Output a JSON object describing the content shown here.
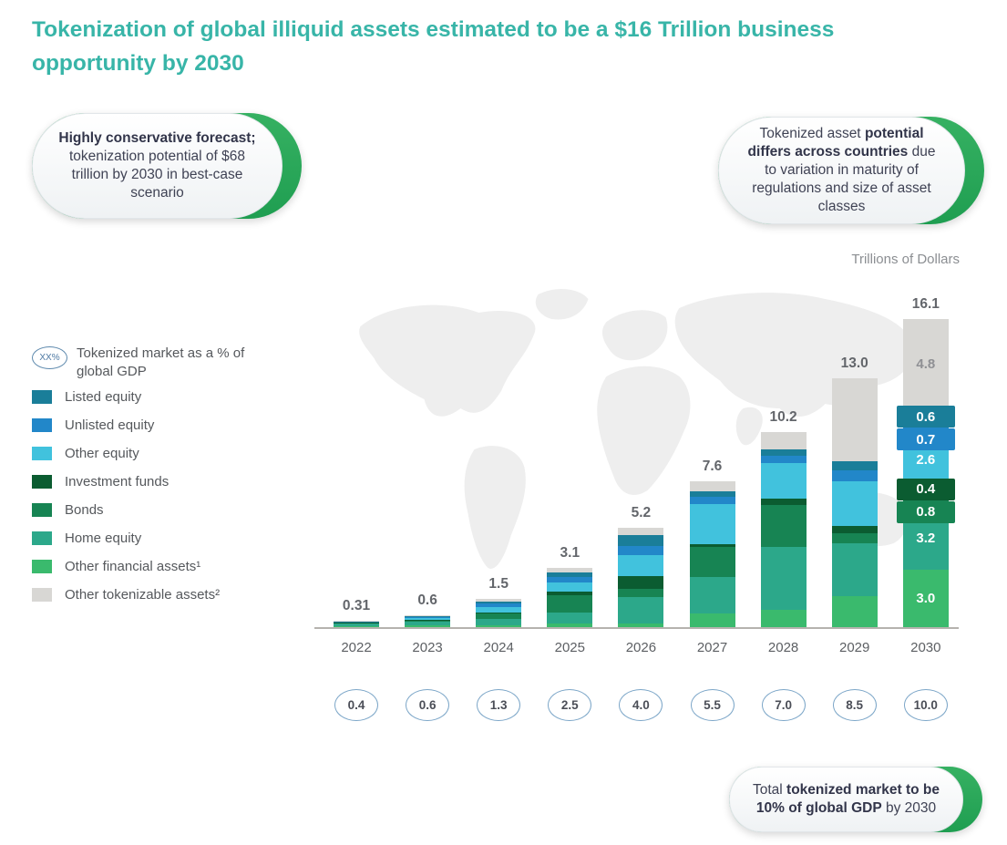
{
  "title_lines": [
    "Tokenization of global illiquid assets estimated to be a $16 Trillion business",
    "opportunity by 2030"
  ],
  "callouts": {
    "top_left": {
      "bold": "Highly conservative forecast;",
      "rest": " tokenization potential of $68 trillion by 2030 in best-case scenario"
    },
    "top_right": {
      "prefix": "Tokenized asset ",
      "bold": "potential differs across countries",
      "suffix": " due to variation in maturity of regulations and size of asset classes"
    },
    "bottom": {
      "prefix": "Total ",
      "bold": "tokenized market to be 10% of global GDP",
      "suffix": " by 2030"
    }
  },
  "legend": {
    "gdp_badge": {
      "badge_text": "XX%",
      "label": "Tokenized market as a % of global GDP"
    },
    "items": [
      {
        "label": "Listed equity",
        "color": "#1a7e99"
      },
      {
        "label": "Unlisted equity",
        "color": "#2287c9"
      },
      {
        "label": "Other equity",
        "color": "#41c2dd"
      },
      {
        "label": "Investment funds",
        "color": "#0b5c31"
      },
      {
        "label": "Bonds",
        "color": "#178453"
      },
      {
        "label": "Home equity",
        "color": "#2ca88a"
      },
      {
        "label": "Other financial assets¹",
        "color": "#3aba6d"
      },
      {
        "label": "Other tokenizable assets²",
        "color": "#d8d7d4"
      }
    ]
  },
  "chart_data": {
    "type": "bar",
    "stacked": true,
    "title": "Tokenization of global illiquid assets estimated to be a $16 Trillion business opportunity by 2030",
    "unit_label": "Trillions of Dollars",
    "categories": [
      "2022",
      "2023",
      "2024",
      "2025",
      "2026",
      "2027",
      "2028",
      "2029",
      "2030"
    ],
    "totals": [
      0.31,
      0.6,
      1.5,
      3.1,
      5.2,
      7.6,
      10.2,
      13.0,
      16.1
    ],
    "total_labels": [
      "0.31",
      "0.6",
      "1.5",
      "3.1",
      "5.2",
      "7.6",
      "10.2",
      "13.0",
      "16.1"
    ],
    "gdp_percent_of_global": [
      "0.4",
      "0.6",
      "1.3",
      "2.5",
      "4.0",
      "5.5",
      "7.0",
      "8.5",
      "10.0"
    ],
    "stack_order": "bottom-to-top",
    "series": [
      {
        "name": "Other financial assets¹",
        "color": "#3aba6d",
        "values": [
          0.05,
          0.08,
          0.1,
          0.2,
          0.2,
          0.7,
          0.9,
          1.6,
          3.0
        ]
      },
      {
        "name": "Home equity",
        "color": "#2ca88a",
        "values": [
          0.15,
          0.22,
          0.35,
          0.55,
          1.35,
          1.9,
          3.3,
          2.8,
          3.2
        ]
      },
      {
        "name": "Bonds",
        "color": "#178453",
        "values": [
          0.04,
          0.08,
          0.25,
          0.9,
          0.45,
          1.6,
          2.2,
          0.5,
          0.8
        ]
      },
      {
        "name": "Investment funds",
        "color": "#0b5c31",
        "values": [
          0.01,
          0.02,
          0.07,
          0.2,
          0.65,
          0.15,
          0.3,
          0.4,
          0.4
        ]
      },
      {
        "name": "Other equity",
        "color": "#41c2dd",
        "values": [
          0.03,
          0.08,
          0.3,
          0.5,
          1.1,
          2.1,
          1.85,
          2.3,
          2.6
        ]
      },
      {
        "name": "Unlisted equity",
        "color": "#2287c9",
        "values": [
          0.01,
          0.04,
          0.15,
          0.25,
          0.5,
          0.35,
          0.4,
          0.6,
          0.7
        ]
      },
      {
        "name": "Listed equity",
        "color": "#1a7e99",
        "values": [
          0.01,
          0.04,
          0.13,
          0.25,
          0.55,
          0.3,
          0.35,
          0.45,
          0.6
        ]
      },
      {
        "name": "Other tokenizable assets²",
        "color": "#d8d7d4",
        "values": [
          0.01,
          0.04,
          0.15,
          0.25,
          0.4,
          0.5,
          0.9,
          4.35,
          4.8
        ],
        "label_text_color": "#8f9094"
      }
    ],
    "segment_labels": {
      "year": "2030",
      "values": [
        "3.0",
        "3.2",
        "0.8",
        "0.4",
        "2.6",
        "0.7",
        "0.6",
        "4.8"
      ]
    },
    "estimation_note": "Totals, GDP percentages and 2030 segment values are labeled on the chart; per-segment values for 2022-2029 are estimated from bar proportions.",
    "ylim": [
      0,
      17
    ],
    "grid": false,
    "legend_position": "left"
  },
  "colors": {
    "title_teal": "#38b5a8",
    "accent_green": "#27a556",
    "axis_gray": "#b5b2ae",
    "map_gray": "#eeeeee"
  }
}
